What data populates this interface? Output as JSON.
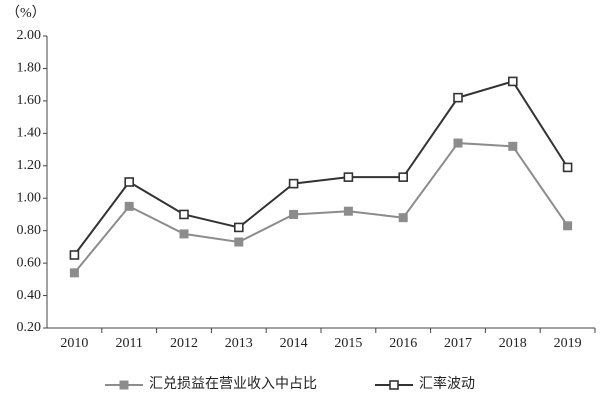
{
  "chart_data": {
    "type": "line",
    "y_label": "（%）",
    "categories": [
      "2010",
      "2011",
      "2012",
      "2013",
      "2014",
      "2015",
      "2016",
      "2017",
      "2018",
      "2019"
    ],
    "series": [
      {
        "name": "汇兑损益在营业收入中占比",
        "color": "#8c8c8c",
        "marker": "filled-square",
        "values": [
          0.54,
          0.95,
          0.78,
          0.73,
          0.9,
          0.92,
          0.88,
          1.34,
          1.32,
          0.83
        ]
      },
      {
        "name": "汇率波动",
        "color": "#333333",
        "marker": "hollow-square",
        "values": [
          0.65,
          1.1,
          0.9,
          0.82,
          1.09,
          1.13,
          1.13,
          1.62,
          1.72,
          1.19
        ]
      }
    ],
    "ylim": [
      0.2,
      2.0
    ],
    "yticks": [
      {
        "value": 0.2,
        "label": "0.20"
      },
      {
        "value": 0.4,
        "label": "0.40"
      },
      {
        "value": 0.6,
        "label": "0.60"
      },
      {
        "value": 0.8,
        "label": "0.80"
      },
      {
        "value": 1.0,
        "label": "1.00"
      },
      {
        "value": 1.2,
        "label": "1.20"
      },
      {
        "value": 1.4,
        "label": "1.40"
      },
      {
        "value": 1.6,
        "label": "1.60"
      },
      {
        "value": 1.8,
        "label": "1.80"
      },
      {
        "value": 2.0,
        "label": "2.00"
      }
    ],
    "legend": "bottom"
  }
}
